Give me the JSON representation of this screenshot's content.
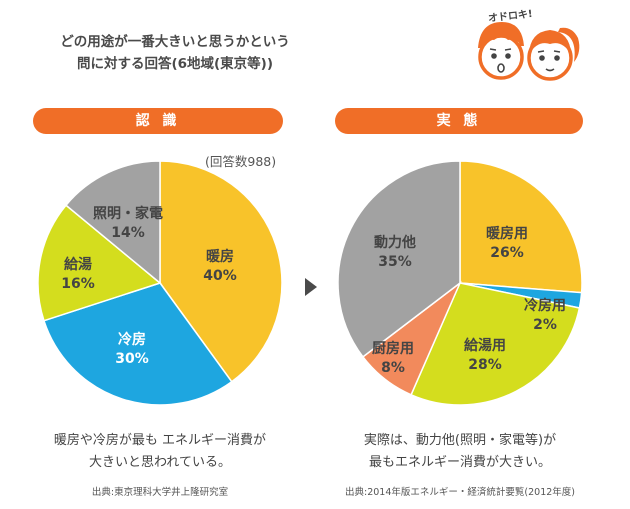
{
  "headline": {
    "line1": "どの用途が一番大きいと思うかという",
    "line2": "問に対する回答(6地域(東京等))"
  },
  "kids_exclaim": "オドロキ!",
  "arrow_icon": "triangle-right-icon",
  "colors": {
    "accent": "#f06e27",
    "heating": "#f8c32a",
    "cooling": "#1ea6e0",
    "hot_water": "#d4dd1e",
    "lighting": "#a2a2a2",
    "kitchen": "#f28a5c"
  },
  "left": {
    "header": "認 識",
    "count": "(回答数988)",
    "caption_line1": "暖房や冷房が最も エネルギー消費が",
    "caption_line2": "大きいと思われている。",
    "source": "出典:東京理科大学井上隆研究室"
  },
  "right": {
    "header": "実 態",
    "caption_line1": "実際は、動力他(照明・家電等)が",
    "caption_line2": "最もエネルギー消費が大きい。",
    "source": "出典:2014年版エネルギー・経済統計要覧(2012年度)"
  },
  "chart_data": [
    {
      "type": "pie",
      "title": "認 識",
      "start": "12 o'clock, clockwise",
      "slices": [
        {
          "label": "暖房",
          "value": 40,
          "value_label": "40%",
          "color": "#f8c32a"
        },
        {
          "label": "冷房",
          "value": 30,
          "value_label": "30%",
          "color": "#1ea6e0"
        },
        {
          "label": "給湯",
          "value": 16,
          "value_label": "16%",
          "color": "#d4dd1e"
        },
        {
          "label": "照明・家電",
          "value": 14,
          "value_label": "14%",
          "color": "#a2a2a2"
        }
      ]
    },
    {
      "type": "pie",
      "title": "実 態",
      "start": "12 o'clock, clockwise",
      "slices": [
        {
          "label": "暖房用",
          "value": 26,
          "value_label": "26%",
          "color": "#f8c32a"
        },
        {
          "label": "冷房用",
          "value": 2,
          "value_label": "2%",
          "color": "#1ea6e0"
        },
        {
          "label": "給湯用",
          "value": 28,
          "value_label": "28%",
          "color": "#d4dd1e"
        },
        {
          "label": "厨房用",
          "value": 8,
          "value_label": "8%",
          "color": "#f28a5c"
        },
        {
          "label": "動力他",
          "value": 35,
          "value_label": "35%",
          "color": "#a2a2a2"
        }
      ]
    }
  ]
}
